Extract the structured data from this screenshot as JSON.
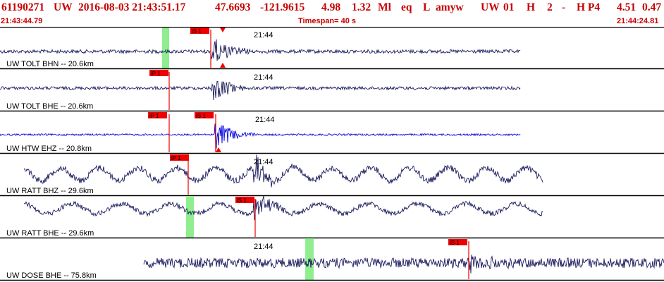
{
  "header": {
    "event_id": "61190271",
    "network": "UW",
    "origin_datetime": "2016-08-03 21:43:51.17",
    "latitude": "47.6693",
    "longitude": "-121.9615",
    "depth": "4.98",
    "magnitude": "1.32",
    "magnitude_type": "Ml",
    "event_type": "eq",
    "flag": "L",
    "author": "amyw",
    "source": "UW",
    "version": "01",
    "quality": "H",
    "field_2": "2",
    "field_dash": "-",
    "processing": "H P4",
    "value_1": "4.51",
    "value_2": "0.47",
    "start_time": "21:43:44.79",
    "timespan_label": "Timespan=",
    "timespan_value": "40 s",
    "end_time": "21:44:24.81"
  },
  "colors": {
    "header_text": "#c80000",
    "trace": "#1c1c5e",
    "trace_highlight": "#0000e0",
    "pick_flag": "#ee0000",
    "pick_window": "#90ee90",
    "separator": "#000000"
  },
  "channels": [
    {
      "label": "UW TOLT BHN -- 20.6km",
      "time_label": "21:44",
      "picks": [
        {
          "text": "iS 1",
          "marker": "triangle"
        }
      ],
      "highlight": false
    },
    {
      "label": "UW TOLT BHE -- 20.6km",
      "time_label": "21:44",
      "picks": [
        {
          "text": "iP 1",
          "marker": "none"
        }
      ],
      "highlight": false
    },
    {
      "label": "UW HTW EHZ -- 20.8km",
      "time_label": "21:44",
      "picks": [
        {
          "text": "iP 1",
          "marker": "none"
        },
        {
          "text": "iS 1",
          "marker": "triangle"
        }
      ],
      "highlight": true
    },
    {
      "label": "UW RATT BHZ -- 29.6km",
      "time_label": "21:44",
      "picks": [
        {
          "text": "iP 1",
          "marker": "none"
        }
      ],
      "highlight": false
    },
    {
      "label": "UW RATT BHE -- 29.6km",
      "time_label": "",
      "picks": [
        {
          "text": "iS 1",
          "marker": "none"
        }
      ],
      "highlight": false
    },
    {
      "label": "UW DOSE BHE -- 75.8km",
      "time_label": "21:44",
      "picks": [
        {
          "text": "iS 1",
          "marker": "none"
        }
      ],
      "highlight": false
    }
  ]
}
